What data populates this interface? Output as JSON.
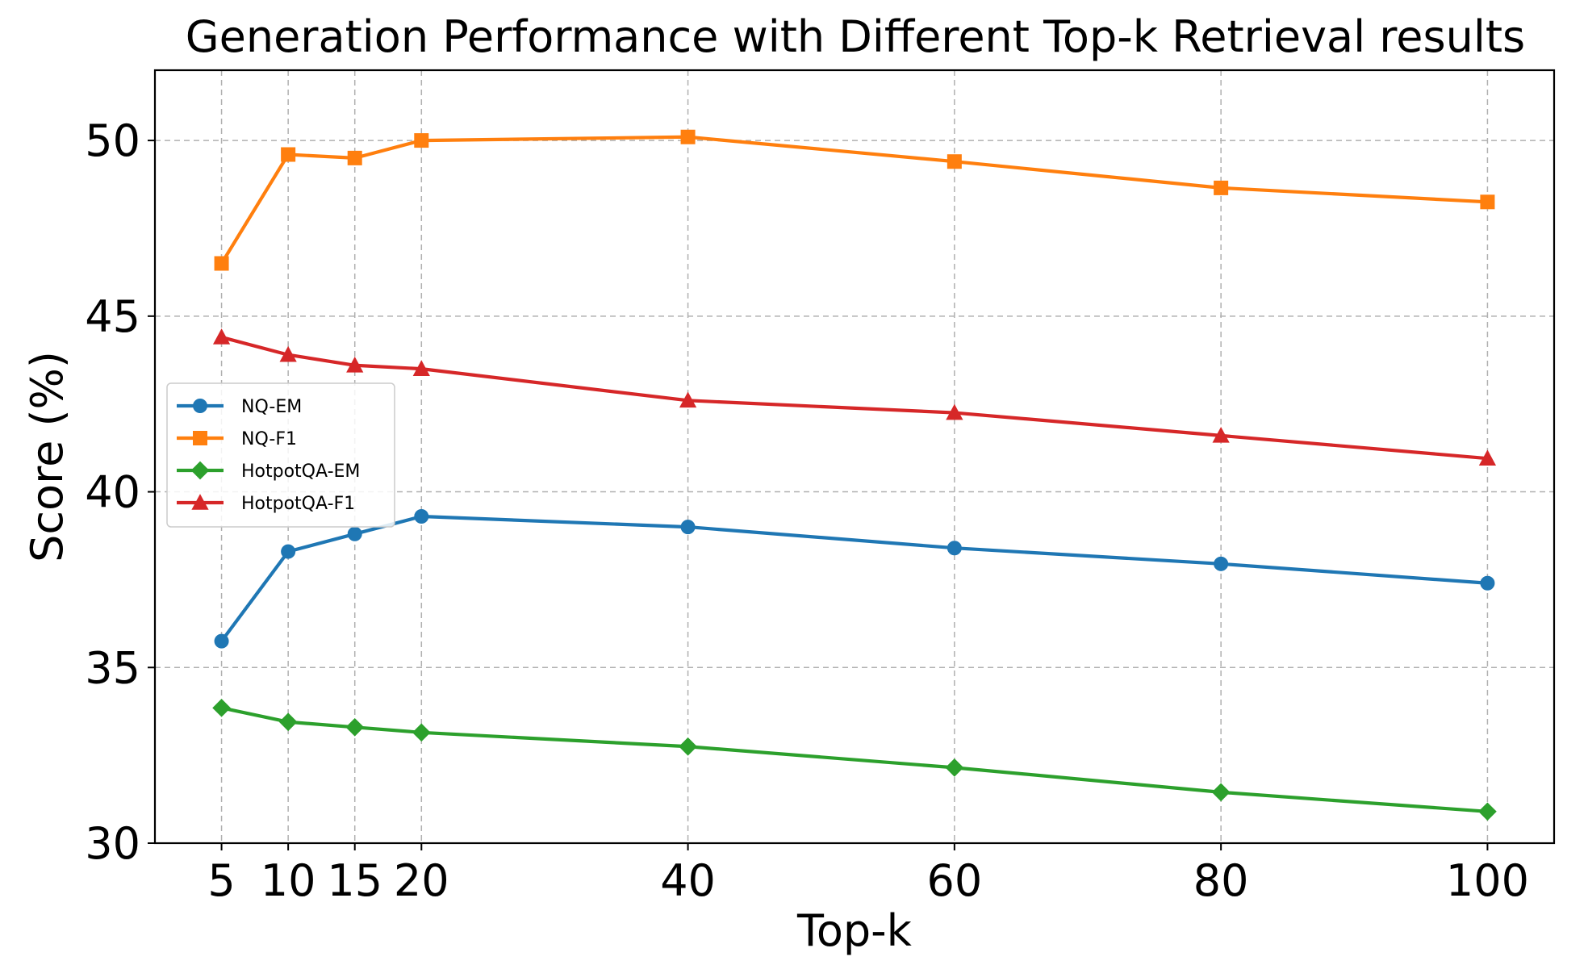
{
  "chart_data": {
    "type": "line",
    "title": "Generation Performance with Different Top-k Retrieval results",
    "xlabel": "Top-k",
    "ylabel": "Score (%)",
    "x": [
      5,
      10,
      15,
      20,
      40,
      60,
      80,
      100
    ],
    "xticks": [
      5,
      10,
      15,
      20,
      40,
      60,
      80,
      100
    ],
    "xlim": [
      0,
      105
    ],
    "ylim": [
      30,
      52
    ],
    "yticks": [
      30,
      35,
      40,
      45,
      50
    ],
    "grid": true,
    "legend_position": "center-left",
    "series": [
      {
        "name": "NQ-EM",
        "color": "#1f77b4",
        "marker": "circle",
        "values": [
          35.75,
          38.3,
          38.8,
          39.3,
          39.0,
          38.4,
          37.95,
          37.4
        ]
      },
      {
        "name": "NQ-F1",
        "color": "#ff7f0e",
        "marker": "square",
        "values": [
          46.5,
          49.6,
          49.5,
          50.0,
          50.1,
          49.4,
          48.65,
          48.25
        ]
      },
      {
        "name": "HotpotQA-EM",
        "color": "#2ca02c",
        "marker": "diamond",
        "values": [
          33.85,
          33.45,
          33.3,
          33.15,
          32.75,
          32.15,
          31.45,
          30.9
        ]
      },
      {
        "name": "HotpotQA-F1",
        "color": "#d62728",
        "marker": "triangle",
        "values": [
          44.4,
          43.9,
          43.6,
          43.5,
          42.6,
          42.25,
          41.6,
          40.95
        ]
      }
    ]
  }
}
